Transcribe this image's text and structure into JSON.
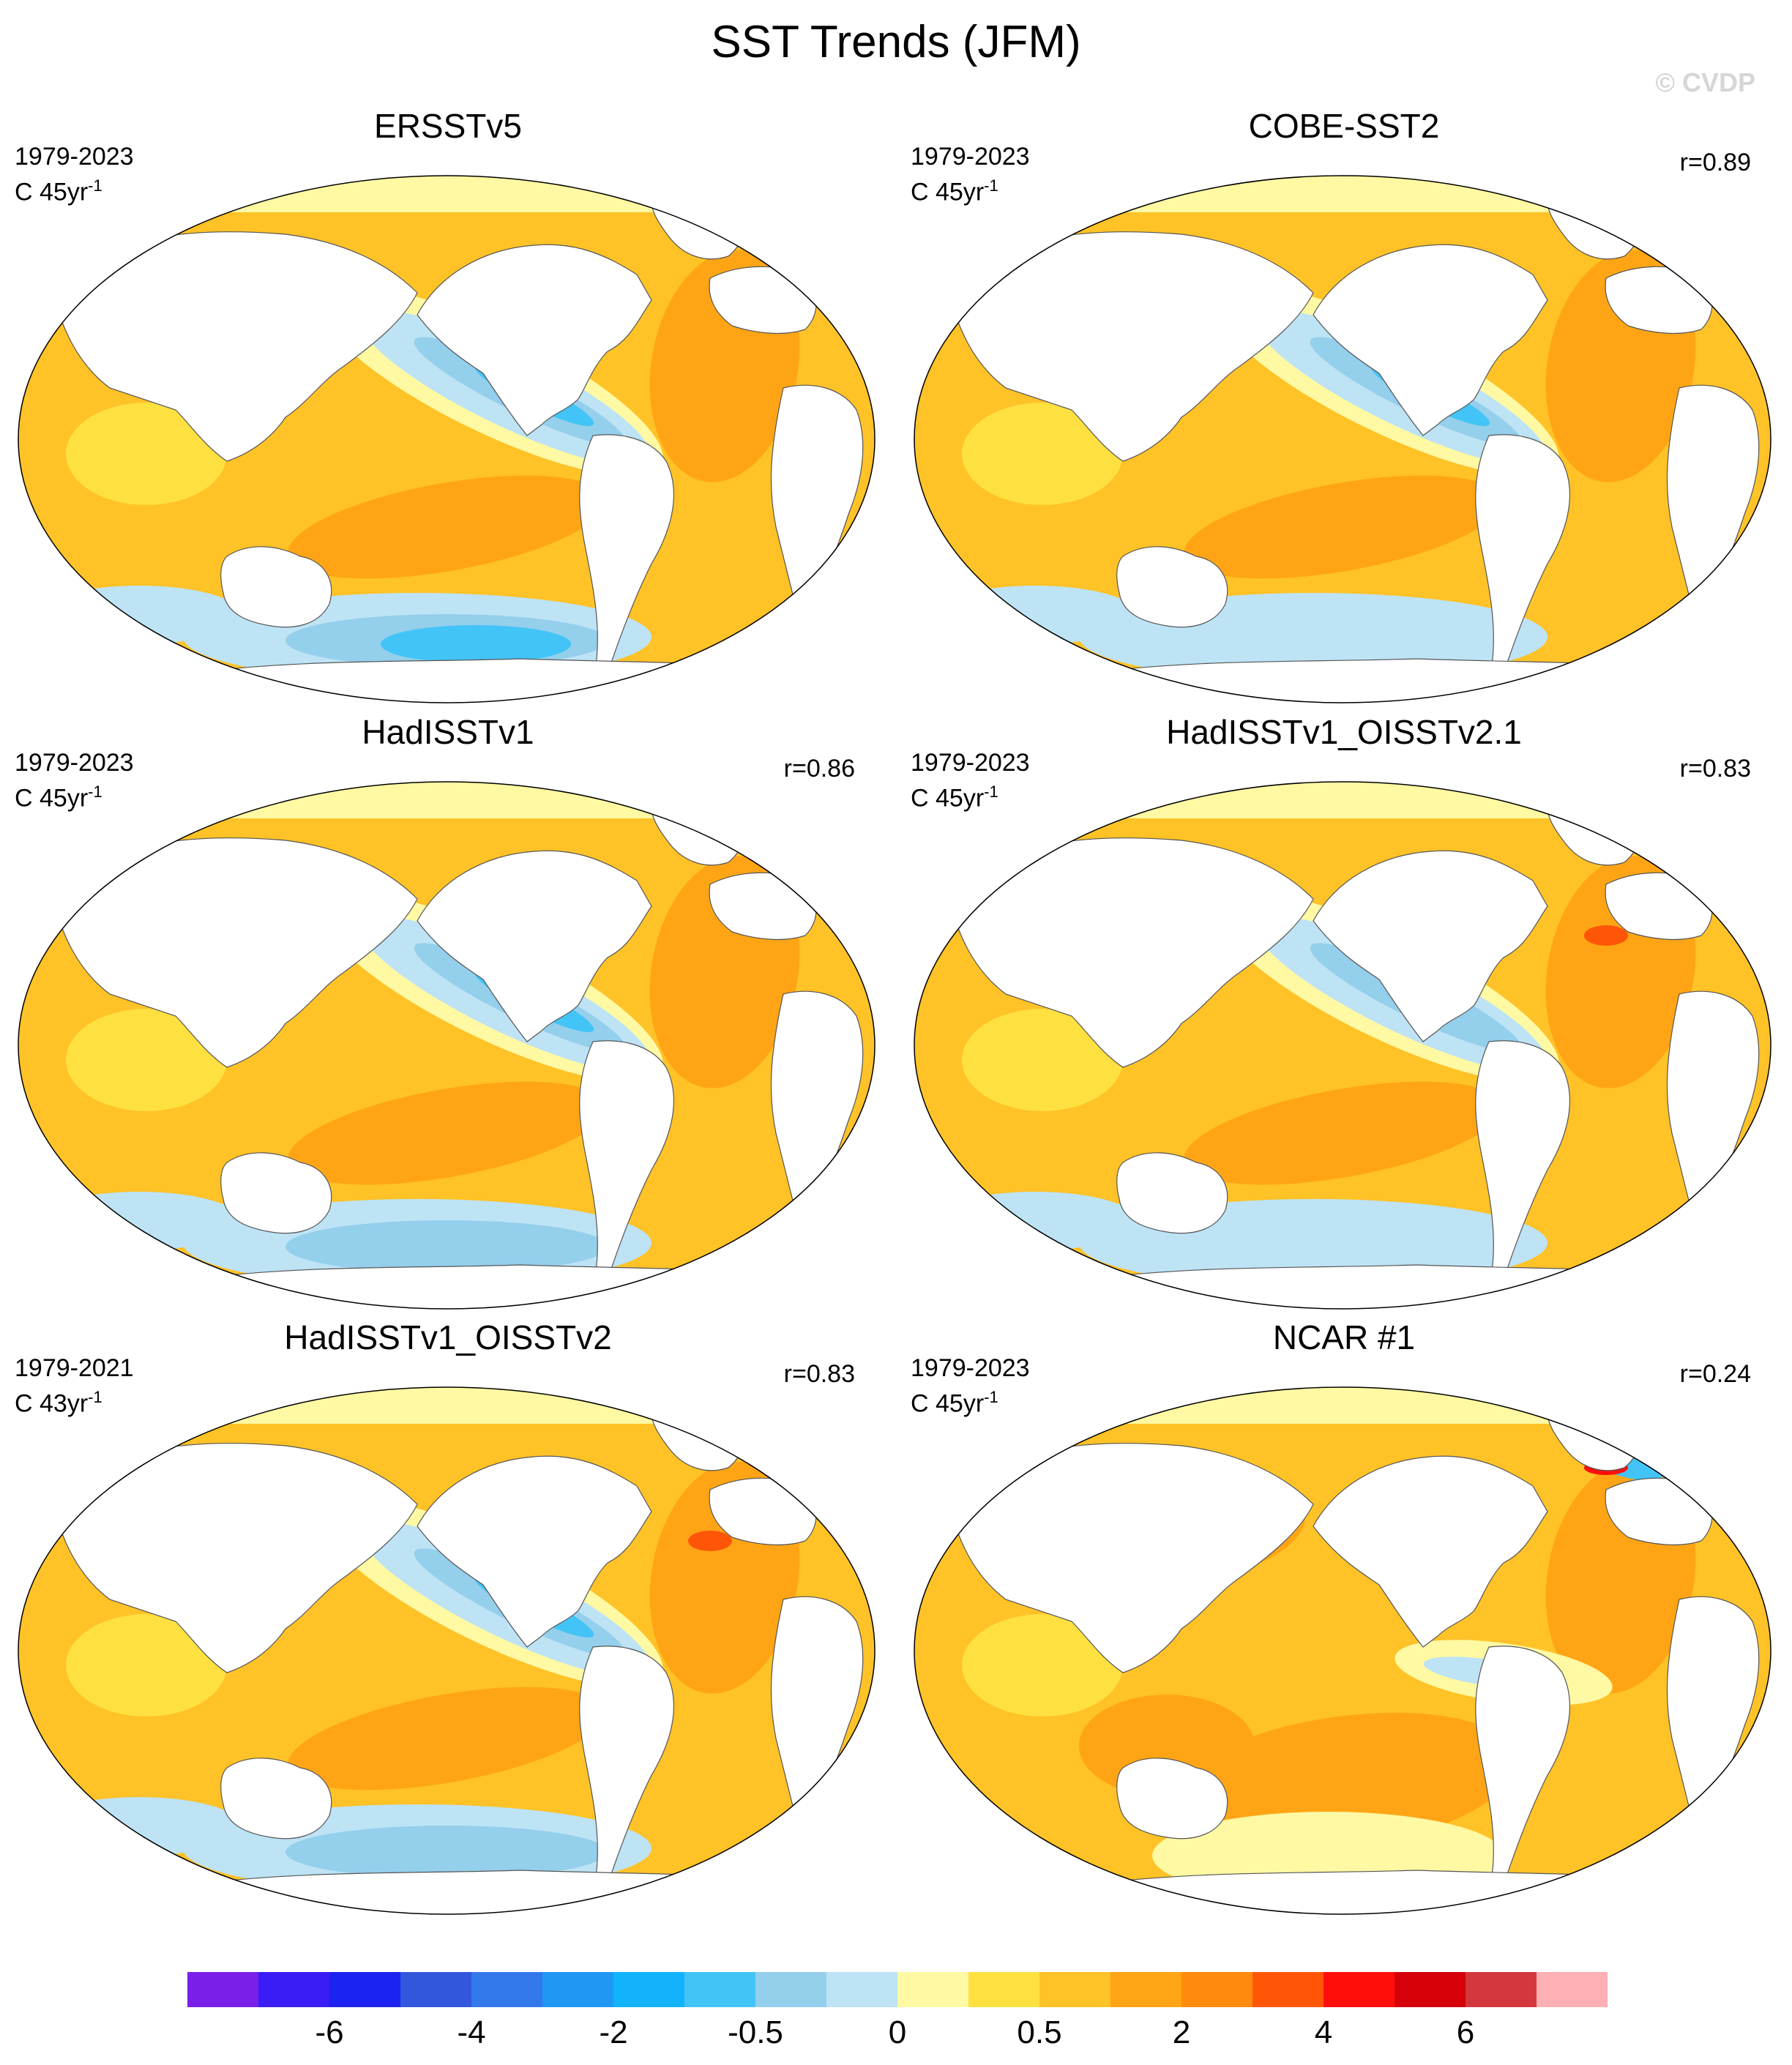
{
  "title": "SST Trends (JFM)",
  "watermark": "© CVDP",
  "panels": [
    {
      "title": "ERSSTv5",
      "period": "1979-2023",
      "units_prefix": "C 45yr",
      "units_sup": "-1",
      "corr": "",
      "style": "era"
    },
    {
      "title": "COBE-SST2",
      "period": "1979-2023",
      "units_prefix": "C 45yr",
      "units_sup": "-1",
      "corr": "r=0.89",
      "style": "cobe"
    },
    {
      "title": "HadISSTv1",
      "period": "1979-2023",
      "units_prefix": "C 45yr",
      "units_sup": "-1",
      "corr": "r=0.86",
      "style": "had"
    },
    {
      "title": "HadISSTv1_OISSTv2.1",
      "period": "1979-2023",
      "units_prefix": "C 45yr",
      "units_sup": "-1",
      "corr": "r=0.83",
      "style": "oi21"
    },
    {
      "title": "HadISSTv1_OISSTv2",
      "period": "1979-2021",
      "units_prefix": "C 43yr",
      "units_sup": "-1",
      "corr": "r=0.83",
      "style": "oi2"
    },
    {
      "title": "NCAR #1",
      "period": "1979-2023",
      "units_prefix": "C 45yr",
      "units_sup": "-1",
      "corr": "r=0.24",
      "style": "ncar"
    }
  ],
  "colorbar": {
    "colors": [
      "#7a1fe8",
      "#3a1cf5",
      "#1c22f0",
      "#3357dc",
      "#3479eb",
      "#1f98f3",
      "#12b3fb",
      "#43c4f7",
      "#94cfec",
      "#bde3f5",
      "#fff9a3",
      "#ffe041",
      "#ffc227",
      "#ffa515",
      "#ff8a0d",
      "#ff5507",
      "#ff0e0c",
      "#d6000a",
      "#d4383e",
      "#ffb0b4"
    ],
    "labels": [
      "-6",
      "-4",
      "-2",
      "-0.5",
      "0",
      "0.5",
      "2",
      "4",
      "6"
    ]
  },
  "chart_data": {
    "type": "heatmap",
    "title": "SST Trends (JFM)",
    "variable": "sea surface temperature trend",
    "panels": [
      "ERSSTv5",
      "COBE-SST2",
      "HadISSTv1",
      "HadISSTv1_OISSTv2.1",
      "HadISSTv1_OISSTv2",
      "NCAR #1"
    ],
    "pattern_correlation_vs_ERSSTv5": {
      "COBE-SST2": 0.89,
      "HadISSTv1": 0.86,
      "HadISSTv1_OISSTv2.1": 0.83,
      "HadISSTv1_OISSTv2": 0.83,
      "NCAR #1": 0.24
    },
    "periods": {
      "ERSSTv5": "1979-2023",
      "COBE-SST2": "1979-2023",
      "HadISSTv1": "1979-2023",
      "HadISSTv1_OISSTv2.1": "1979-2023",
      "HadISSTv1_OISSTv2": "1979-2021",
      "NCAR #1": "1979-2023"
    },
    "colorbar_tick_labels": [
      "-6",
      "-4",
      "-2",
      "-0.5",
      "0",
      "0.5",
      "2",
      "4",
      "6"
    ],
    "colorbar_bins": 20,
    "features": {
      "tropical_east_pacific": "cooling (blue) in observations, weak warming in NCAR #1",
      "southern_ocean": "cooling (blue) in observations, warming in NCAR #1",
      "most_other_oceans": "warming 0.5-2 C"
    }
  }
}
